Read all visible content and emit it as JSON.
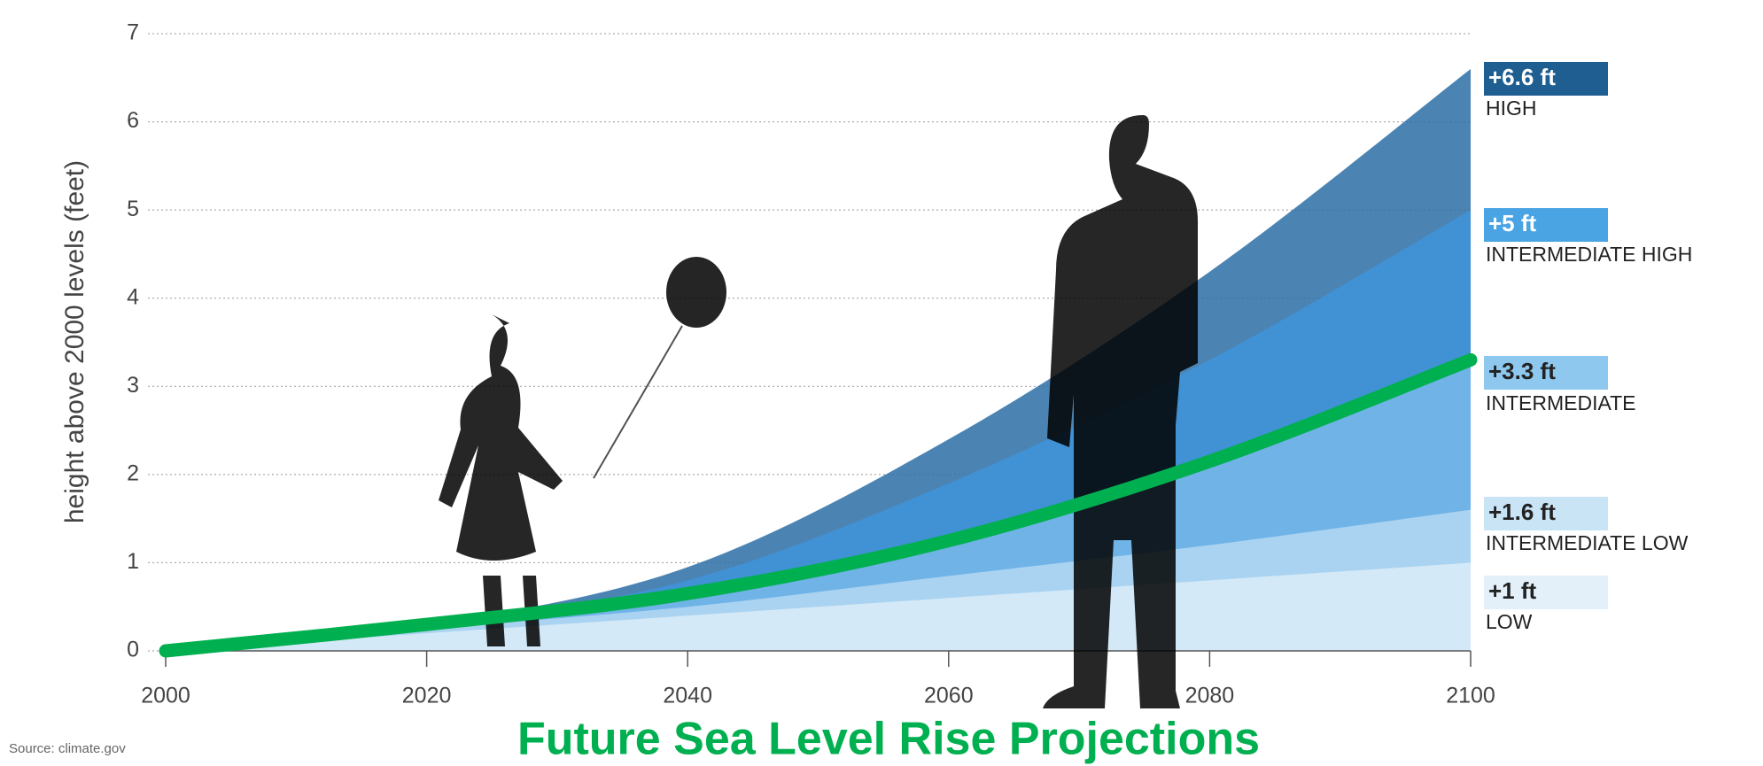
{
  "chart_data": {
    "type": "area",
    "y_label": "height above 2000 levels (feet)",
    "source": "Source: climate.gov",
    "title": "Future Sea Level Rise Projections",
    "x": [
      2000,
      2020,
      2040,
      2060,
      2080,
      2100
    ],
    "series": [
      {
        "name": "HIGH",
        "color": "#2b6ea6",
        "values": [
          0,
          0.3,
          0.95,
          2.4,
          4.3,
          6.6
        ],
        "value_labels": [
          null,
          null,
          null,
          null,
          null,
          "+6.6 ft"
        ]
      },
      {
        "name": "INTERMEDIATE HIGH",
        "color": "#3f93db",
        "values": [
          0,
          0.3,
          0.8,
          1.9,
          3.3,
          5
        ],
        "value_labels": [
          null,
          null,
          null,
          null,
          null,
          "+5 ft"
        ]
      },
      {
        "name": "INTERMEDIATE",
        "color": "#79b9ea",
        "values": [
          0,
          0.3,
          0.65,
          1.25,
          2.15,
          3.3
        ],
        "value_labels": [
          null,
          null,
          null,
          null,
          null,
          "+3.3 ft"
        ]
      },
      {
        "name": "INTERMEDIATE LOW",
        "color": "#b3d8f2",
        "values": [
          0,
          0.25,
          0.5,
          0.85,
          1.2,
          1.6
        ],
        "value_labels": [
          null,
          null,
          null,
          null,
          null,
          "+1.6 ft"
        ]
      },
      {
        "name": "LOW",
        "color": "#dcecf8",
        "values": [
          0,
          0.2,
          0.4,
          0.6,
          0.8,
          1
        ],
        "value_labels": [
          null,
          null,
          null,
          null,
          null,
          "+1 ft"
        ]
      }
    ],
    "highlight_series": 2,
    "highlight_color": "#00b050",
    "xlim": [
      2000,
      2100
    ],
    "xticks": [
      2000,
      2020,
      2040,
      2060,
      2080,
      2100
    ],
    "ylim": [
      0,
      7
    ],
    "yticks": [
      0,
      1,
      2,
      3,
      4,
      5,
      6,
      7
    ],
    "grid": true
  }
}
